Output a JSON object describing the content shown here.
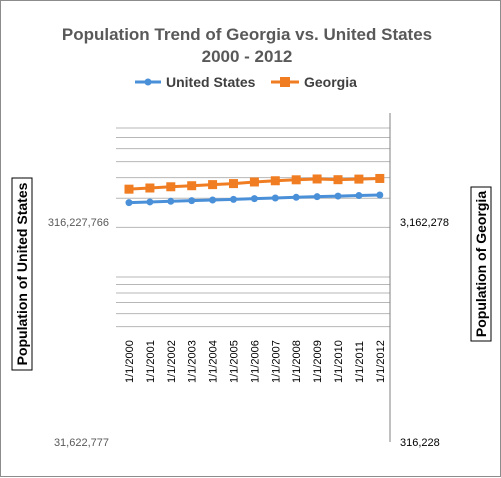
{
  "chart_data": {
    "type": "line",
    "title_line1": "Population Trend of Georgia vs. United States",
    "title_line2": "2000 - 2012",
    "categories": [
      "1/1/2000",
      "1/1/2001",
      "1/1/2002",
      "1/1/2003",
      "1/1/2004",
      "1/1/2005",
      "1/1/2006",
      "1/1/2007",
      "1/1/2008",
      "1/1/2009",
      "1/1/2010",
      "1/1/2011",
      "1/1/2012"
    ],
    "left_axis": {
      "label": "Population of United States",
      "scale": "log",
      "tick_labels": [
        "316,227,766",
        "31,622,777"
      ],
      "range": [
        10000000,
        1000000000
      ]
    },
    "right_axis": {
      "label": "Population of Georgia",
      "scale": "log",
      "tick_labels": [
        "3,162,278",
        "316,228"
      ],
      "range": [
        100000,
        31622777
      ]
    },
    "legend_position": "top",
    "series": [
      {
        "name": "United States",
        "axis": "left",
        "color": "#4a90d9",
        "marker": "circle",
        "values": [
          282200000,
          285000000,
          287600000,
          290100000,
          292800000,
          295500000,
          298400000,
          301200000,
          304100000,
          306800000,
          309300000,
          311600000,
          313900000
        ]
      },
      {
        "name": "Georgia",
        "axis": "right",
        "color": "#f07d22",
        "marker": "square",
        "values": [
          8230000,
          8400000,
          8580000,
          8740000,
          8910000,
          9070000,
          9330000,
          9530000,
          9690000,
          9830000,
          9710000,
          9810000,
          9920000
        ]
      }
    ]
  }
}
